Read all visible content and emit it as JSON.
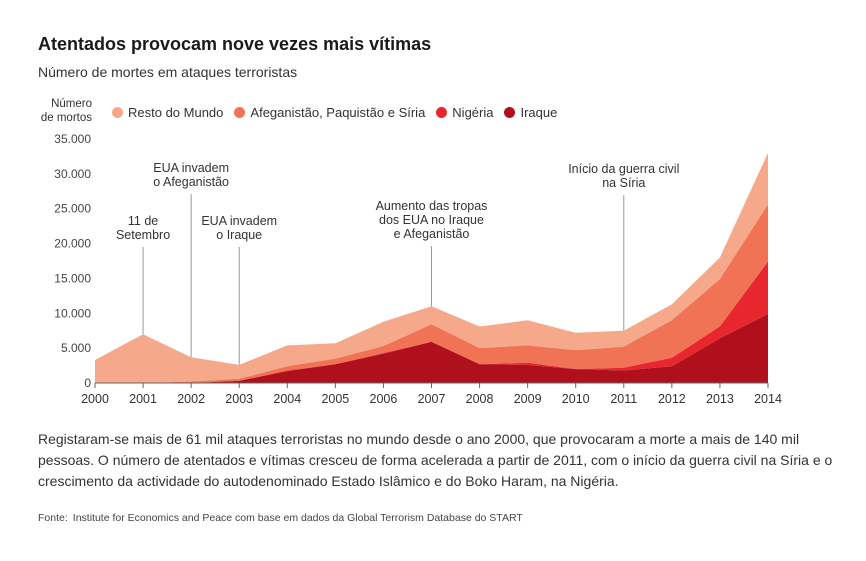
{
  "title": "Atentados provocam nove vezes mais vítimas",
  "subtitle": "Número de mortes em ataques terroristas",
  "ylabel": "Número\nde mortos",
  "legend": [
    {
      "label": "Resto do Mundo",
      "color": "#f5a98a"
    },
    {
      "label": "Afeganistão, Paquistão e Síria",
      "color": "#f07355"
    },
    {
      "label": "Nigéria",
      "color": "#e8262e"
    },
    {
      "label": "Iraque",
      "color": "#b0101b"
    }
  ],
  "chart_data": {
    "type": "area",
    "stacked": true,
    "x": [
      2000,
      2001,
      2002,
      2003,
      2004,
      2005,
      2006,
      2007,
      2008,
      2009,
      2010,
      2011,
      2012,
      2013,
      2014
    ],
    "ylim": [
      0,
      35000
    ],
    "yticks": [
      0,
      5000,
      10000,
      15000,
      20000,
      25000,
      30000,
      35000
    ],
    "ytick_labels": [
      "0",
      "5.000",
      "10.000",
      "15.000",
      "20.000",
      "25.000",
      "30.000",
      "35.000"
    ],
    "series": [
      {
        "name": "Iraque",
        "color": "#b0101b",
        "values": [
          0,
          0,
          0,
          300,
          1700,
          2700,
          4200,
          5900,
          2700,
          2600,
          2000,
          1800,
          2400,
          6400,
          9900
        ]
      },
      {
        "name": "Nigéria",
        "color": "#e8262e",
        "values": [
          0,
          0,
          0,
          0,
          100,
          0,
          100,
          0,
          0,
          300,
          0,
          400,
          1200,
          1700,
          7500
        ]
      },
      {
        "name": "Afeganistão, Paquistão e Síria",
        "color": "#f07355",
        "values": [
          0,
          0,
          200,
          300,
          600,
          800,
          1000,
          2500,
          2300,
          2500,
          2700,
          3000,
          5400,
          6800,
          8200
        ]
      },
      {
        "name": "Resto do Mundo",
        "color": "#f5a98a",
        "values": [
          3300,
          7000,
          3500,
          2000,
          3000,
          2200,
          3500,
          2600,
          3100,
          3600,
          2500,
          2300,
          2300,
          3100,
          7400
        ]
      }
    ],
    "annotations": [
      {
        "year": 2001,
        "text": [
          "11 de",
          "Setembro"
        ]
      },
      {
        "year": 2002,
        "text": [
          "EUA invadem",
          "o Afeganistão"
        ]
      },
      {
        "year": 2003,
        "text": [
          "EUA invadem",
          "o Iraque"
        ]
      },
      {
        "year": 2007,
        "text": [
          "Aumento das tropas",
          "dos EUA no Iraque",
          "e Afeganistão"
        ]
      },
      {
        "year": 2011,
        "text": [
          "Início da guerra civil",
          "na Síria"
        ]
      }
    ]
  },
  "body_text": "Registaram-se mais de 61 mil ataques terroristas no mundo desde o ano 2000, que provocaram a morte a mais de 140 mil pessoas. O número de atentados e vítimas cresceu de forma acelerada a partir de 2011, com o início da guerra civil na Síria e o crescimento da actividade do autodenominado Estado Islâmico e do Boko Haram, na Nigéria.",
  "source_label": "Fonte:",
  "source_text": "Institute for Economics and Peace com base em dados da Global Terrorism Database do START"
}
